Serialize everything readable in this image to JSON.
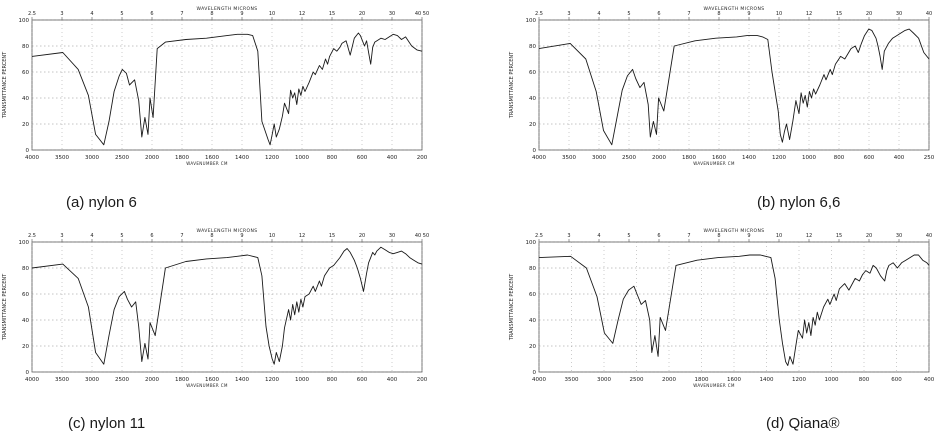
{
  "chart_data": [
    {
      "type": "line",
      "caption": "(a)  nylon 6",
      "title": "WAVELENGTH  MICRONS",
      "ylabel": "TRANSMITTANCE  PERCENT",
      "xlabel": "WAVENUMBER  CM",
      "top_ticks": [
        "2.5",
        "3",
        "4",
        "5",
        "6",
        "7",
        "8",
        "9",
        "10",
        "12",
        "15",
        "20",
        "30",
        "40 50"
      ],
      "bottom_ticks": [
        "4000",
        "3500",
        "3000",
        "2500",
        "2000",
        "1800",
        "1600",
        "1400",
        "1200",
        "1000",
        "800",
        "600",
        "400",
        "200"
      ],
      "yticks": [
        "100",
        "80",
        "60",
        "40",
        "20",
        "0"
      ],
      "ylim": [
        0,
        100
      ],
      "xlim": [
        4000,
        200
      ],
      "x": [
        4000,
        3700,
        3550,
        3450,
        3380,
        3300,
        3250,
        3200,
        3150,
        3120,
        3080,
        3050,
        3000,
        2960,
        2930,
        2900,
        2870,
        2850,
        2820,
        2780,
        2700,
        2500,
        2300,
        2100,
        2000,
        1900,
        1850,
        1800,
        1760,
        1700,
        1680,
        1660,
        1640,
        1620,
        1590,
        1560,
        1540,
        1500,
        1480,
        1460,
        1440,
        1420,
        1400,
        1380,
        1360,
        1340,
        1300,
        1260,
        1240,
        1200,
        1170,
        1140,
        1120,
        1100,
        1060,
        1030,
        1000,
        980,
        940,
        900,
        860,
        820,
        800,
        760,
        740,
        720,
        700,
        680,
        660,
        600,
        560,
        520,
        480,
        440,
        400,
        360,
        300,
        250,
        200
      ],
      "y": [
        72,
        75,
        62,
        42,
        12,
        4,
        22,
        45,
        57,
        62,
        59,
        50,
        54,
        38,
        10,
        25,
        12,
        40,
        25,
        78,
        83,
        85,
        86,
        88,
        89,
        89,
        88,
        76,
        22,
        8,
        4,
        12,
        20,
        10,
        16,
        26,
        36,
        28,
        46,
        40,
        44,
        35,
        47,
        42,
        49,
        45,
        52,
        60,
        58,
        65,
        62,
        70,
        66,
        72,
        78,
        76,
        79,
        82,
        84,
        73,
        86,
        90,
        88,
        80,
        84,
        75,
        66,
        79,
        83,
        86,
        85,
        87,
        89,
        88,
        85,
        87,
        80,
        77,
        76
      ]
    },
    {
      "type": "line",
      "caption": "(b)  nylon 6,6",
      "title": "WAVELENGTH  MICRONS",
      "ylabel": "TRANSMITTANCE  PERCENT",
      "xlabel": "WAVENUMBER  CM",
      "top_ticks": [
        "2.5",
        "3",
        "4",
        "5",
        "6",
        "7",
        "8",
        "9",
        "10",
        "12",
        "15",
        "20",
        "30",
        "40"
      ],
      "bottom_ticks": [
        "4000",
        "3500",
        "3000",
        "2500",
        "2000",
        "1800",
        "1600",
        "1400",
        "1200",
        "1000",
        "800",
        "600",
        "400",
        "250"
      ],
      "yticks": [
        "100",
        "80",
        "60",
        "40",
        "20",
        "0"
      ],
      "ylim": [
        0,
        100
      ],
      "xlim": [
        4000,
        250
      ],
      "x": [
        4000,
        3700,
        3550,
        3450,
        3380,
        3300,
        3250,
        3200,
        3150,
        3100,
        3070,
        3030,
        2990,
        2950,
        2930,
        2900,
        2870,
        2850,
        2800,
        2700,
        2500,
        2300,
        2100,
        2000,
        1900,
        1850,
        1800,
        1760,
        1700,
        1680,
        1660,
        1640,
        1620,
        1590,
        1560,
        1530,
        1500,
        1480,
        1460,
        1440,
        1420,
        1400,
        1380,
        1360,
        1340,
        1300,
        1260,
        1240,
        1200,
        1180,
        1150,
        1100,
        1060,
        1000,
        960,
        930,
        900,
        870,
        830,
        800,
        760,
        740,
        720,
        700,
        680,
        640,
        600,
        560,
        520,
        480,
        440,
        400,
        350,
        300,
        250
      ],
      "y": [
        78,
        82,
        70,
        45,
        15,
        4,
        25,
        46,
        57,
        62,
        55,
        48,
        52,
        35,
        10,
        22,
        12,
        40,
        30,
        80,
        84,
        86,
        87,
        88,
        88,
        87,
        85,
        60,
        30,
        12,
        6,
        14,
        20,
        8,
        22,
        38,
        28,
        44,
        36,
        42,
        33,
        45,
        40,
        47,
        43,
        50,
        58,
        54,
        62,
        58,
        66,
        72,
        70,
        78,
        80,
        75,
        82,
        88,
        93,
        92,
        86,
        80,
        72,
        62,
        76,
        82,
        86,
        88,
        90,
        92,
        93,
        90,
        86,
        75,
        70
      ]
    },
    {
      "type": "line",
      "caption": "(c)  nylon 11",
      "title": "WAVELENGTH  MICRONS",
      "ylabel": "TRANSMITTANCE  PERCENT",
      "xlabel": "WAVENUMBER  CM",
      "top_ticks": [
        "2.5",
        "3",
        "4",
        "5",
        "6",
        "7",
        "8",
        "9",
        "10",
        "12",
        "15",
        "20",
        "30",
        "40 50"
      ],
      "bottom_ticks": [
        "4000",
        "3500",
        "3000",
        "2500",
        "2000",
        "1800",
        "1600",
        "1400",
        "1200",
        "1000",
        "800",
        "600",
        "400",
        "200"
      ],
      "yticks": [
        "100",
        "80",
        "60",
        "40",
        "20",
        "0"
      ],
      "ylim": [
        0,
        100
      ],
      "xlim": [
        4000,
        200
      ],
      "x": [
        4000,
        3700,
        3550,
        3450,
        3380,
        3300,
        3250,
        3200,
        3150,
        3100,
        3070,
        3030,
        2990,
        2960,
        2930,
        2900,
        2870,
        2850,
        2800,
        2700,
        2500,
        2300,
        2100,
        2000,
        1900,
        1850,
        1800,
        1760,
        1720,
        1690,
        1660,
        1640,
        1620,
        1590,
        1560,
        1540,
        1500,
        1480,
        1460,
        1440,
        1420,
        1400,
        1380,
        1360,
        1340,
        1300,
        1260,
        1240,
        1200,
        1180,
        1150,
        1100,
        1060,
        1000,
        960,
        930,
        900,
        860,
        830,
        800,
        770,
        740,
        720,
        700,
        680,
        660,
        640,
        600,
        560,
        520,
        480,
        440,
        400,
        360,
        320,
        280,
        240,
        200
      ],
      "y": [
        80,
        83,
        72,
        50,
        15,
        6,
        28,
        48,
        58,
        62,
        56,
        50,
        54,
        35,
        8,
        22,
        10,
        38,
        28,
        80,
        85,
        87,
        88,
        89,
        90,
        89,
        88,
        74,
        35,
        20,
        10,
        6,
        15,
        8,
        20,
        34,
        48,
        40,
        52,
        44,
        54,
        46,
        56,
        50,
        58,
        60,
        66,
        62,
        70,
        66,
        74,
        80,
        82,
        88,
        93,
        95,
        92,
        86,
        80,
        72,
        62,
        76,
        84,
        88,
        92,
        90,
        93,
        96,
        94,
        92,
        91,
        92,
        93,
        91,
        88,
        86,
        84,
        83
      ]
    },
    {
      "type": "line",
      "caption": "(d)  Qiana®",
      "title": "WAVELENGTH  MICRONS",
      "ylabel": "TRANSMITTANCE  PERCENT",
      "xlabel": "WAVENUMBER  CM",
      "top_ticks": [
        "2.5",
        "3",
        "4",
        "5",
        "6",
        "7",
        "8",
        "9",
        "10",
        "12",
        "15",
        "20",
        "30",
        "40"
      ],
      "bottom_ticks": [
        "4000",
        "3500",
        "3000",
        "2500",
        "2000",
        "1800",
        "1600",
        "1400",
        "1200",
        "1000",
        "800",
        "600",
        "400"
      ],
      "yticks": [
        "100",
        "80",
        "60",
        "40",
        "20",
        "0"
      ],
      "ylim": [
        0,
        100
      ],
      "xlim": [
        4000,
        300
      ],
      "x": [
        4000,
        3700,
        3550,
        3450,
        3380,
        3300,
        3250,
        3200,
        3150,
        3100,
        3070,
        3030,
        2990,
        2950,
        2930,
        2900,
        2870,
        2850,
        2800,
        2700,
        2500,
        2300,
        2100,
        2000,
        1900,
        1850,
        1800,
        1760,
        1720,
        1690,
        1660,
        1640,
        1620,
        1590,
        1560,
        1540,
        1500,
        1480,
        1460,
        1440,
        1420,
        1400,
        1380,
        1360,
        1340,
        1300,
        1260,
        1240,
        1200,
        1180,
        1150,
        1100,
        1060,
        1000,
        960,
        930,
        900,
        860,
        830,
        800,
        760,
        720,
        700,
        680,
        640,
        600,
        560,
        520,
        480,
        440,
        400,
        360,
        320,
        300
      ],
      "y": [
        88,
        89,
        80,
        58,
        30,
        22,
        40,
        56,
        63,
        66,
        60,
        52,
        55,
        40,
        15,
        28,
        12,
        42,
        32,
        82,
        86,
        88,
        89,
        90,
        90,
        89,
        88,
        72,
        40,
        22,
        8,
        5,
        12,
        6,
        22,
        32,
        26,
        40,
        30,
        38,
        28,
        42,
        36,
        46,
        40,
        50,
        56,
        52,
        60,
        55,
        64,
        68,
        63,
        72,
        70,
        75,
        78,
        76,
        82,
        80,
        74,
        70,
        78,
        82,
        84,
        80,
        84,
        86,
        88,
        90,
        90,
        86,
        84,
        82
      ]
    }
  ]
}
